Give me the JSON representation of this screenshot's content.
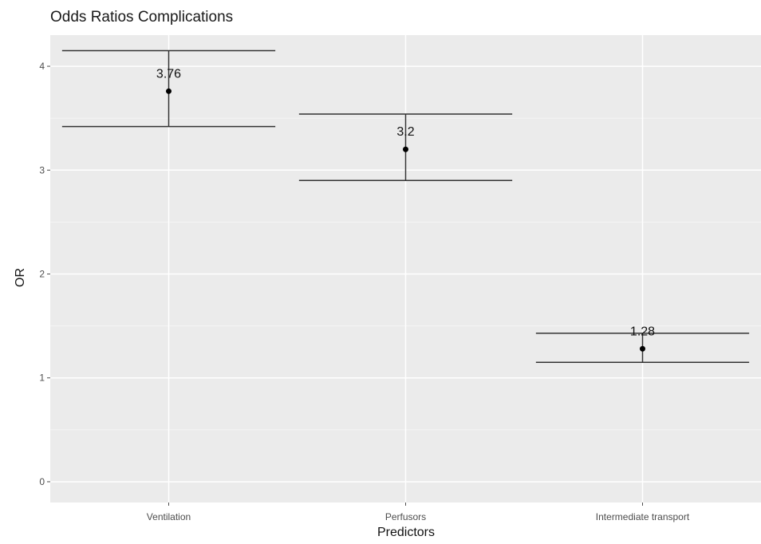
{
  "chart_data": {
    "type": "errorbar",
    "title": "Odds Ratios Complications",
    "xlabel": "Predictors",
    "ylabel": "OR",
    "categories": [
      "Ventilation",
      "Perfusors",
      "Intermediate transport"
    ],
    "values": [
      3.76,
      3.2,
      1.28
    ],
    "lower": [
      3.42,
      2.9,
      1.15
    ],
    "upper": [
      4.15,
      3.54,
      1.43
    ],
    "data_labels": [
      "3.76",
      "3.2",
      "1.28"
    ],
    "ylim": [
      -0.2,
      4.3
    ],
    "yticks": [
      0,
      1,
      2,
      3,
      4
    ],
    "ytick_labels": [
      "0",
      "1",
      "2",
      "3",
      "4"
    ],
    "grid": true,
    "legend": "none",
    "colors": {
      "panel": "#ebebeb",
      "grid_major": "#ffffff",
      "grid_minor": "#f5f5f5",
      "errorbar": "#333333",
      "point": "#000000"
    }
  }
}
